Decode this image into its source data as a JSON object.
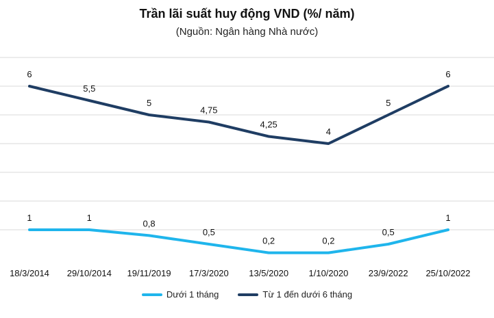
{
  "chart_data": {
    "type": "line",
    "title": "Trần lãi suất huy động VND (%/ năm)",
    "subtitle": "(Nguồn: Ngân hàng Nhà nước)",
    "categories": [
      "18/3/2014",
      "29/10/2014",
      "19/11/2019",
      "17/3/2020",
      "13/5/2020",
      "1/10/2020",
      "23/9/2022",
      "25/10/2022"
    ],
    "series": [
      {
        "name": "Dưới 1 tháng",
        "color": "#1fb5ec",
        "values": [
          1,
          1,
          0.8,
          0.5,
          0.2,
          0.2,
          0.5,
          1
        ],
        "labels": [
          "1",
          "1",
          "0,8",
          "0,5",
          "0,2",
          "0,2",
          "0,5",
          "1"
        ]
      },
      {
        "name": "Từ 1 đến dưới 6 tháng",
        "color": "#1f3d63",
        "values": [
          6,
          5.5,
          5,
          4.75,
          4.25,
          4,
          5,
          6
        ],
        "labels": [
          "6",
          "5,5",
          "5",
          "4,75",
          "4,25",
          "4",
          "5",
          "6"
        ]
      }
    ],
    "ylim": [
      0,
      7
    ],
    "grid": true,
    "legend_position": "bottom"
  }
}
